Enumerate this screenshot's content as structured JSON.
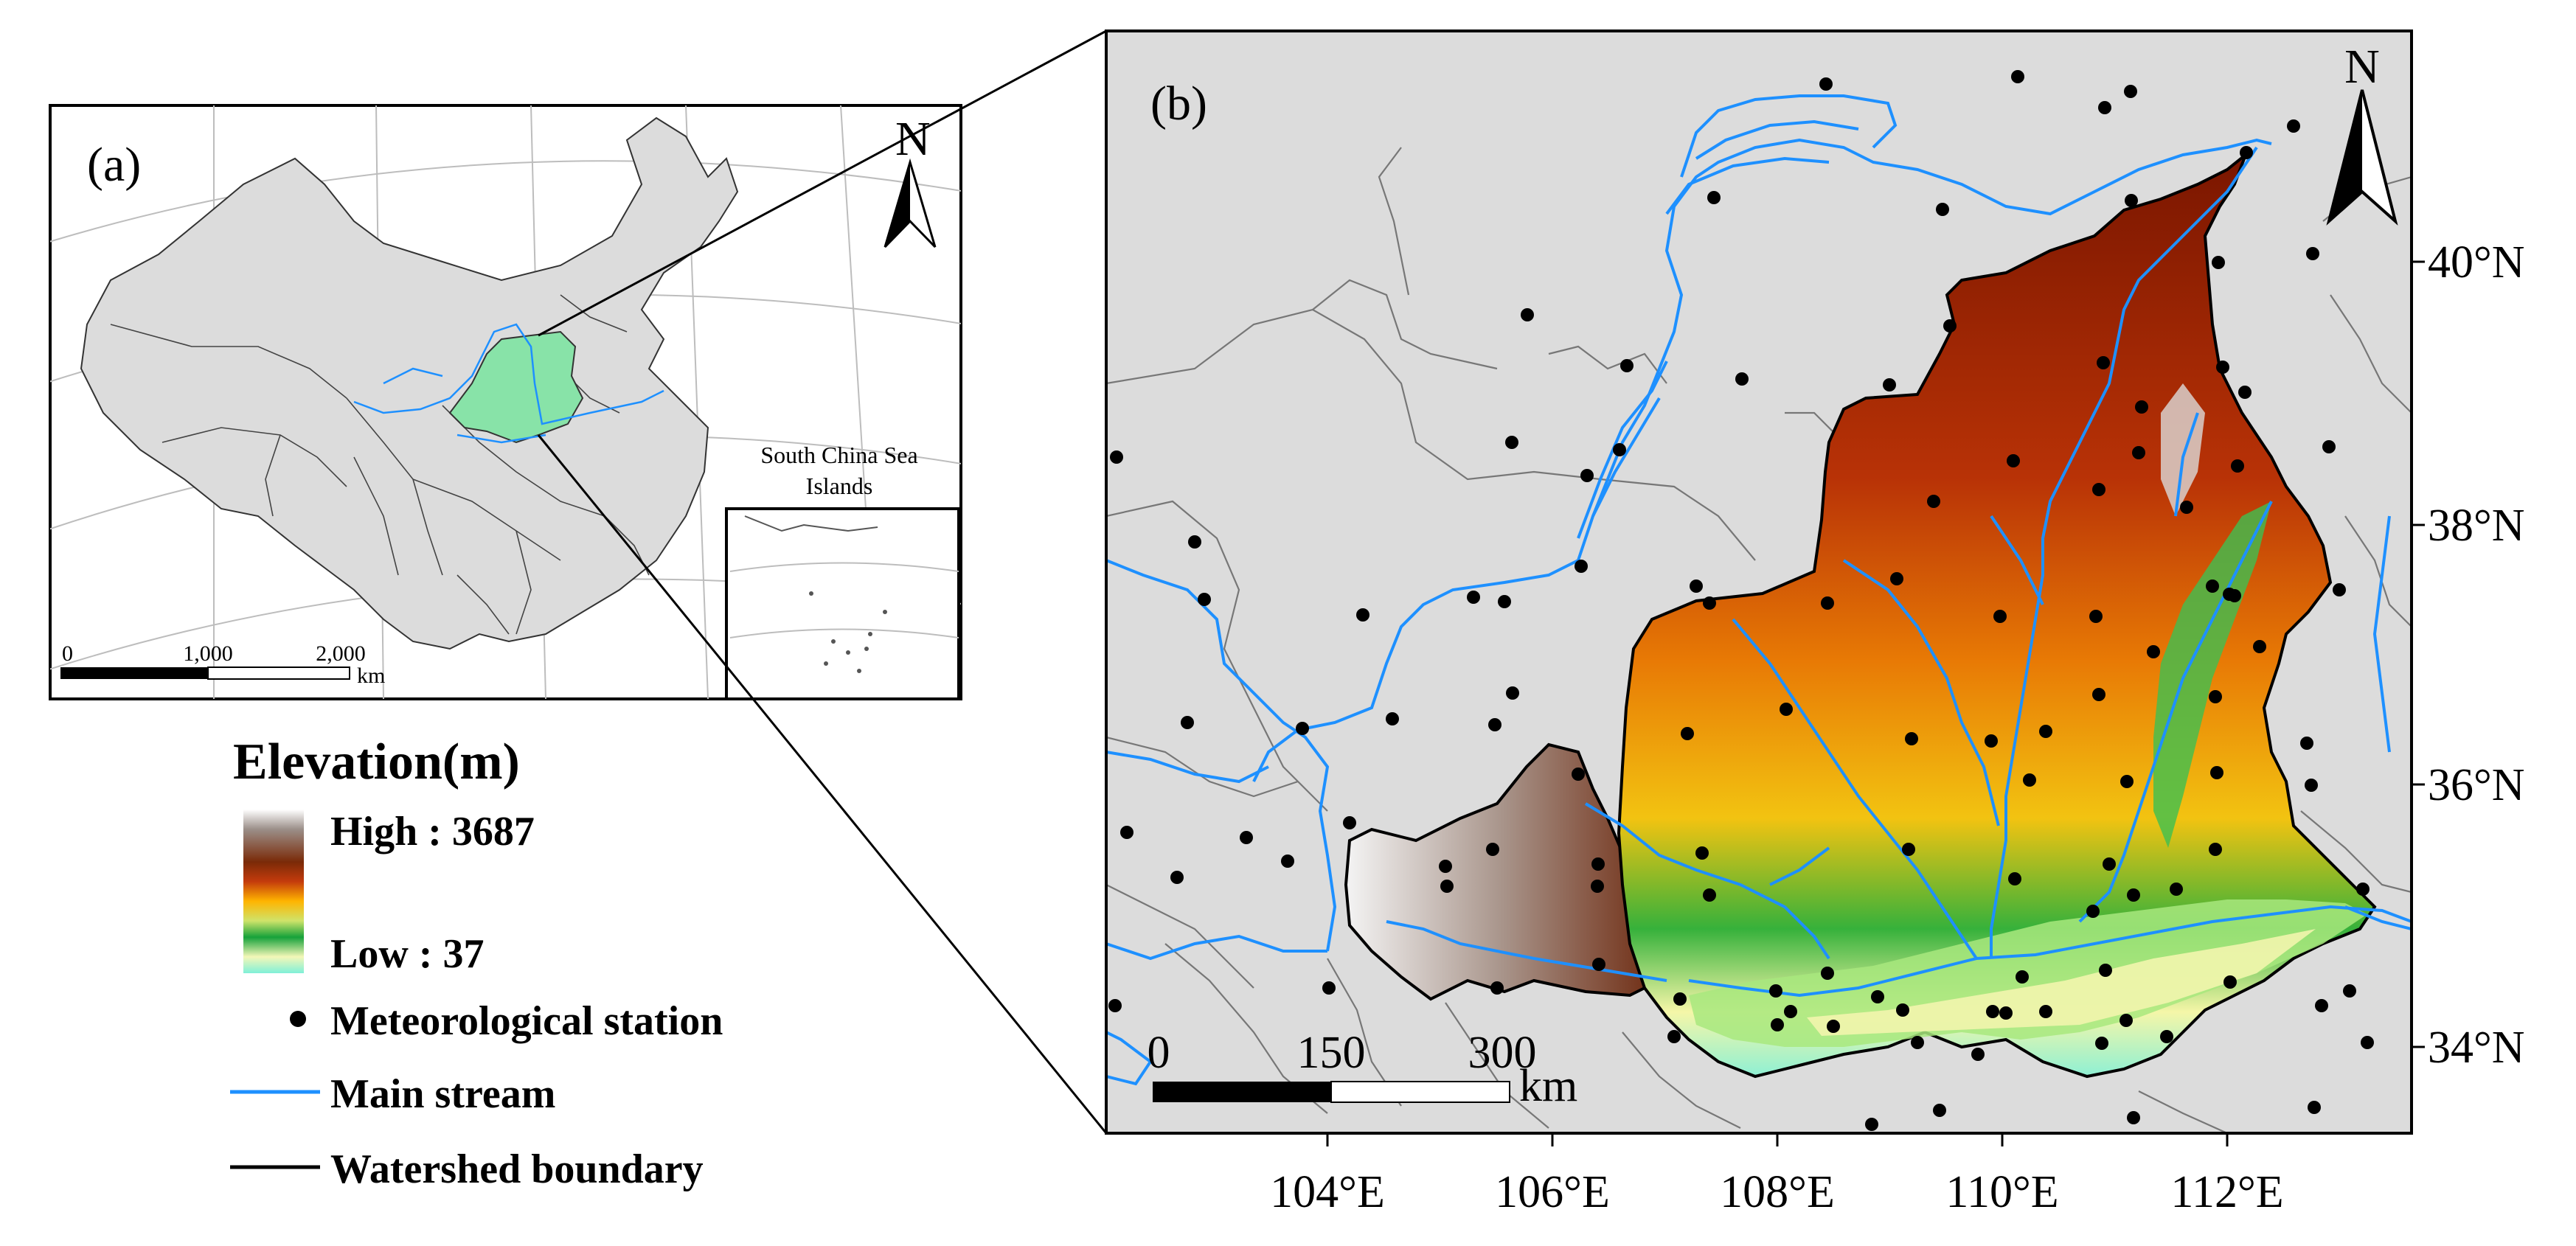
{
  "panel_a": {
    "label": "(a)",
    "north_label": "N",
    "inset_title_line1": "South China Sea",
    "inset_title_line2": "Islands",
    "scale_ticks": [
      "0",
      "1,000",
      "2,000"
    ],
    "scale_unit": "km"
  },
  "panel_b": {
    "label": "(b)",
    "north_label": "N",
    "scale_ticks": [
      "0",
      "150",
      "300"
    ],
    "scale_unit": "km",
    "lon_labels": [
      "104°E",
      "106°E",
      "108°E",
      "110°E",
      "112°E"
    ],
    "lat_labels": [
      "40°N",
      "38°N",
      "36°N",
      "34°N"
    ]
  },
  "legend": {
    "title": "Elevation(m)",
    "high_label": "High : 3687",
    "low_label": "Low : 37",
    "station_label": "Meteorological station",
    "stream_label": "Main stream",
    "boundary_label": "Watershed boundary"
  },
  "colors": {
    "land_gray": "#dcdcdc",
    "stream_blue": "#1e90ff",
    "basin_green": "#88e3a8",
    "station": "#000000"
  }
}
